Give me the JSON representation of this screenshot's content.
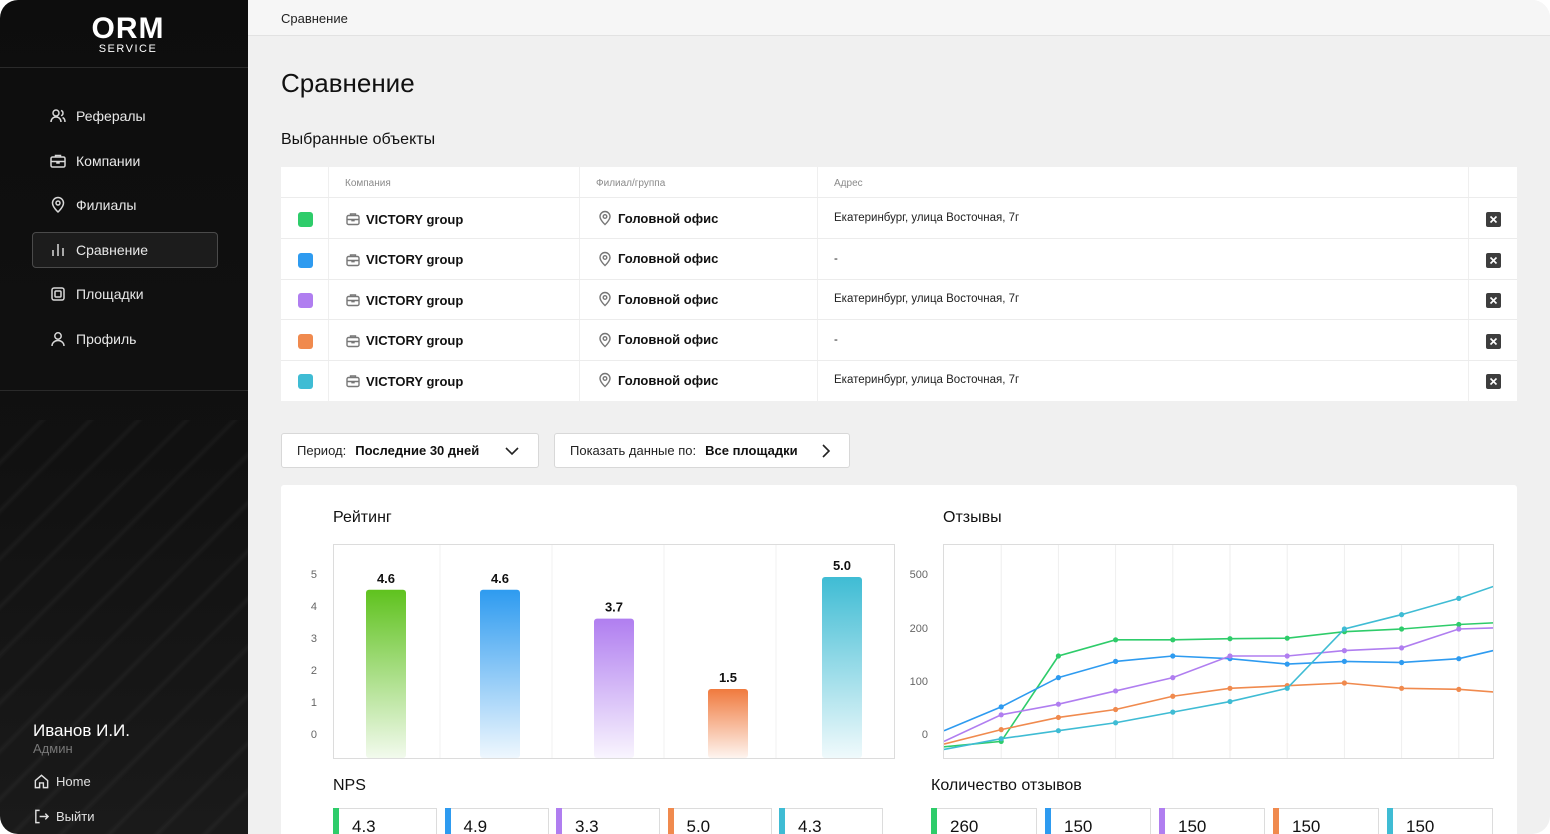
{
  "brand": {
    "logo_main": "ORM",
    "logo_sub": "SERVICE"
  },
  "sidebar": {
    "items": [
      {
        "label": "Рефералы",
        "icon": "users-icon"
      },
      {
        "label": "Компании",
        "icon": "briefcase-icon"
      },
      {
        "label": "Филиалы",
        "icon": "map-pin-icon"
      },
      {
        "label": "Сравнение",
        "icon": "bar-chart-icon",
        "active": true
      },
      {
        "label": "Площадки",
        "icon": "platform-icon"
      },
      {
        "label": "Профиль",
        "icon": "user-icon"
      }
    ],
    "user": {
      "name": "Иванов И.И.",
      "role": "Админ"
    },
    "home_label": "Home",
    "logout_label": "Выйти"
  },
  "breadcrumb": "Сравнение",
  "page_title": "Сравнение",
  "selected_title": "Выбранные объекты",
  "table": {
    "headers": {
      "company": "Компания",
      "branch": "Филиал/группа",
      "address": "Адрес"
    },
    "rows": [
      {
        "color": "#2ecc6a",
        "company": "VICTORY group",
        "branch": "Головной офис",
        "address": "Екатеринбург, улица Восточная, 7г"
      },
      {
        "color": "#2e9bf0",
        "company": "VICTORY group",
        "branch": "Головной офис",
        "address": "-"
      },
      {
        "color": "#b07ef0",
        "company": "VICTORY group",
        "branch": "Головной офис",
        "address": "Екатеринбург, улица Восточная, 7г"
      },
      {
        "color": "#f08a4e",
        "company": "VICTORY group",
        "branch": "Головной офис",
        "address": "-"
      },
      {
        "color": "#3fbcd4",
        "company": "VICTORY group",
        "branch": "Головной офис",
        "address": "Екатеринбург, улица Восточная, 7г"
      }
    ]
  },
  "filters": {
    "period_label": "Период:",
    "period_value": "Последние 30 дней",
    "show_label": "Показать данные по:",
    "show_value": "Все площадки"
  },
  "rating": {
    "title": "Рейтинг",
    "yticks": [
      "5",
      "4",
      "3",
      "2",
      "1",
      "0"
    ]
  },
  "reviews": {
    "title": "Отзывы",
    "yticks": [
      "500",
      "200",
      "100",
      "0"
    ]
  },
  "nps": {
    "title": "NPS",
    "values": [
      "4.3",
      "4.9",
      "3.3",
      "5.0",
      "4.3"
    ]
  },
  "count": {
    "title": "Количество отзывов",
    "values": [
      "260",
      "150",
      "150",
      "150",
      "150"
    ]
  },
  "chart_data": [
    {
      "type": "bar",
      "title": "Рейтинг",
      "categories": [
        "",
        "",
        "",
        "",
        ""
      ],
      "values": [
        4.6,
        4.6,
        3.7,
        1.5,
        5.0
      ],
      "labels": [
        "4.6",
        "4.6",
        "3.7",
        "1.5",
        "5.0"
      ],
      "colors": [
        "#5fc21e",
        "#2e9bf0",
        "#b07ef0",
        "#f07a3e",
        "#3fbcd4"
      ],
      "ylim": [
        0,
        5
      ]
    },
    {
      "type": "line",
      "title": "Отзывы",
      "yscale": "nonlinear",
      "yticks": [
        0,
        100,
        200,
        500
      ],
      "x": [
        0,
        1,
        2,
        3,
        4,
        5,
        6,
        7,
        8,
        9,
        10
      ],
      "series": [
        {
          "color": "#2ecc6a",
          "values": [
            -20,
            -10,
            150,
            180,
            180,
            182,
            183,
            195,
            200,
            225,
            240
          ]
        },
        {
          "color": "#2e9bf0",
          "values": [
            10,
            55,
            110,
            140,
            150,
            145,
            135,
            140,
            138,
            145,
            170
          ]
        },
        {
          "color": "#b07ef0",
          "values": [
            -10,
            40,
            60,
            85,
            110,
            150,
            150,
            160,
            165,
            200,
            210
          ]
        },
        {
          "color": "#f08a4e",
          "values": [
            -15,
            12,
            35,
            50,
            75,
            90,
            95,
            100,
            90,
            88,
            80
          ]
        },
        {
          "color": "#3fbcd4",
          "values": [
            -25,
            -5,
            10,
            25,
            45,
            65,
            90,
            200,
            280,
            370,
            480
          ]
        }
      ]
    }
  ]
}
